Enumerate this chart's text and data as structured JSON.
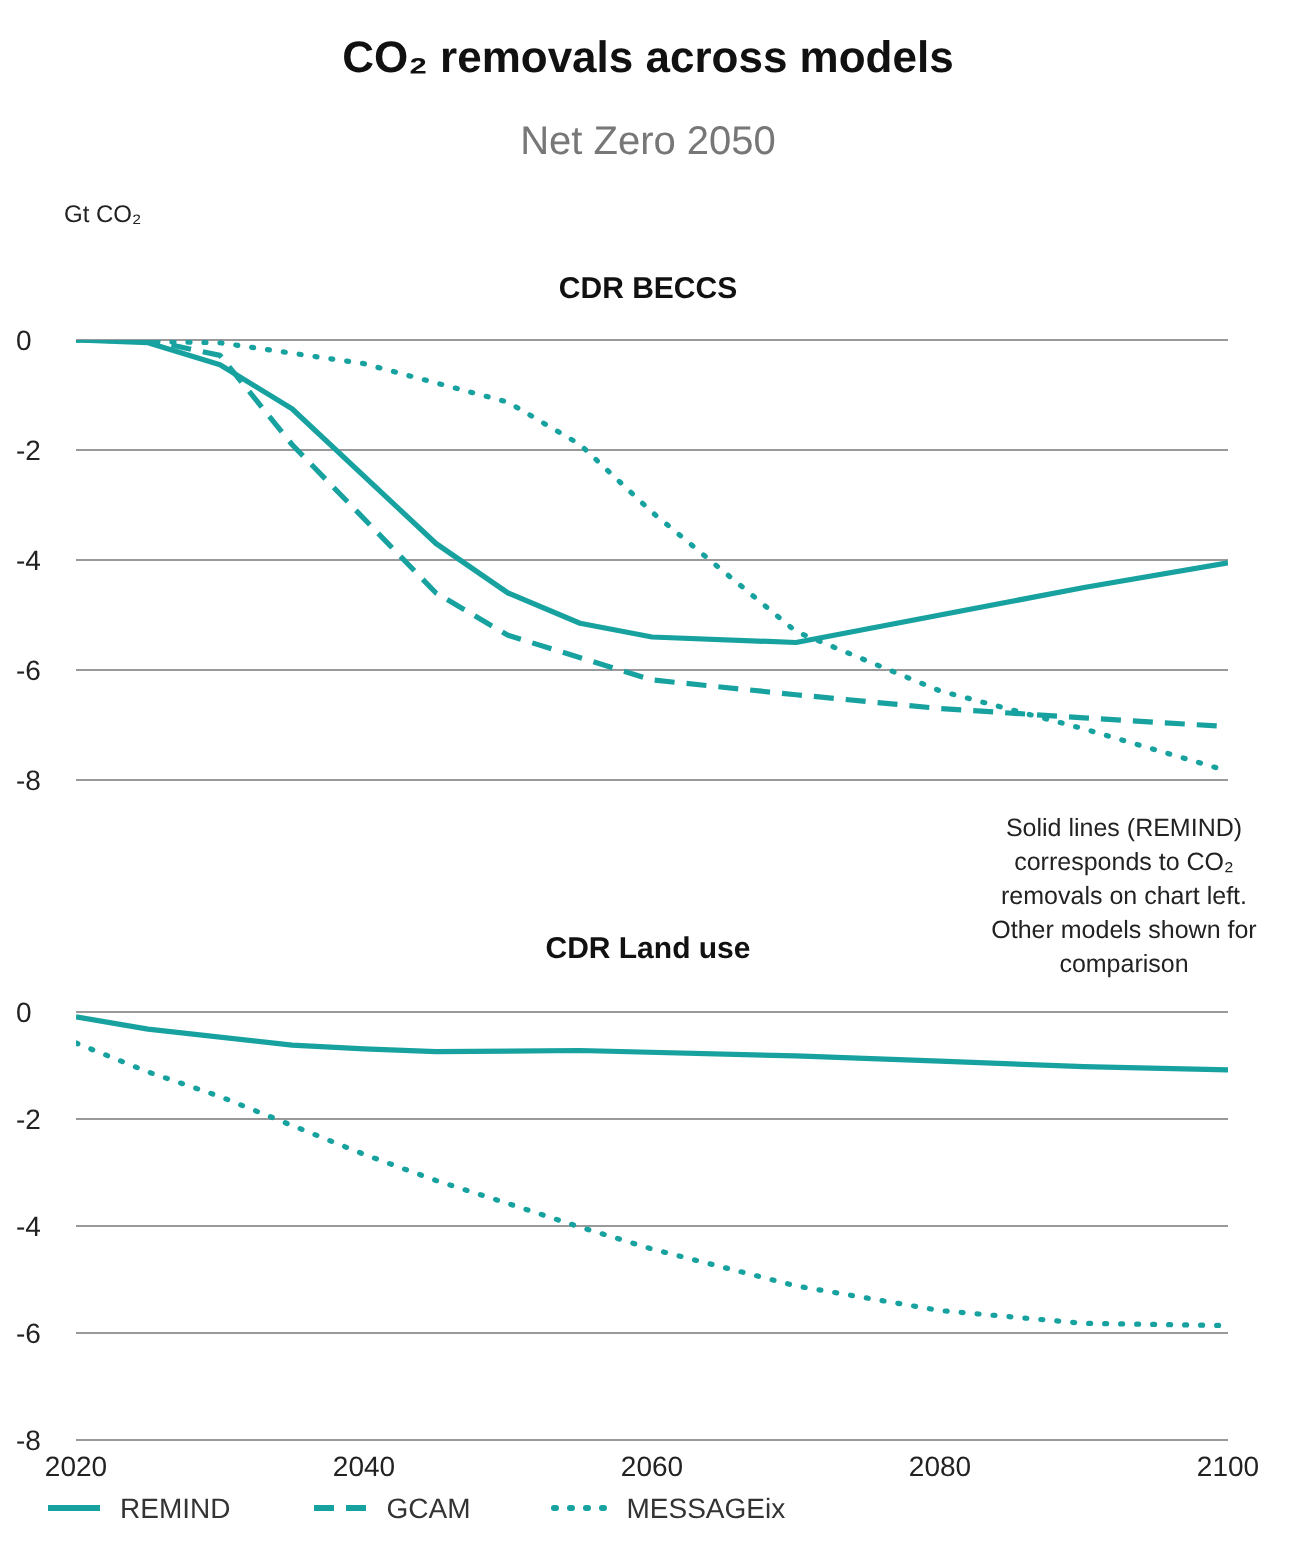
{
  "chart_data": [
    {
      "type": "line",
      "title": "CO₂ removals across models",
      "subtitle": "Net Zero 2050",
      "ylabel": "Gt CO₂",
      "annotations": [
        "CDR BECCS",
        "Solid lines (REMIND) corresponds to CO₂ removals on chart left. Other models shown for comparison"
      ],
      "x": [
        2020,
        2025,
        2030,
        2035,
        2040,
        2045,
        2050,
        2055,
        2060,
        2070,
        2080,
        2090,
        2100
      ],
      "series": [
        {
          "color": "#17a2a0",
          "line_style": "solid",
          "values": [
            0,
            -0.05,
            -0.45,
            -1.25,
            null,
            -3.7,
            -4.6,
            -5.15,
            -5.4,
            -5.5,
            null,
            -4.5,
            -4.05
          ]
        },
        {
          "color": "#17a2a0",
          "line_style": "dashed",
          "values": [
            0,
            0,
            -0.28,
            -1.9,
            null,
            -4.6,
            -5.37,
            null,
            -6.18,
            -6.45,
            -6.7,
            -6.87,
            -7.03
          ]
        },
        {
          "color": "#17a2a0",
          "line_style": "dotted",
          "values": [
            0,
            null,
            -0.05,
            null,
            -0.43,
            null,
            -1.13,
            -1.9,
            -3.13,
            -5.3,
            -6.38,
            -7.07,
            -7.84
          ]
        }
      ],
      "xlim": [
        2020,
        2100
      ],
      "xticks": [
        2020,
        2040,
        2060,
        2080,
        2100
      ],
      "ylim": [
        -8,
        0
      ],
      "yticks": [
        -8,
        -6,
        -4,
        -2,
        0
      ],
      "grid": "y",
      "tick_labels": "y",
      "legend": false
    },
    {
      "type": "line",
      "title": "CDR Land use",
      "x": [
        2020,
        2025,
        2030,
        2035,
        2040,
        2045,
        2050,
        2055,
        2060,
        2070,
        2080,
        2090,
        2100
      ],
      "series": [
        {
          "name": "REMIND",
          "color": "#17a2a0",
          "line_style": "solid",
          "values": [
            -0.09,
            -0.32,
            null,
            -0.62,
            -0.69,
            -0.74,
            null,
            -0.72,
            null,
            -0.82,
            -0.92,
            -1.02,
            -1.08
          ]
        },
        {
          "name": "GCAM",
          "color": "#17a2a0",
          "line_style": "dashed",
          "values": [
            null,
            null,
            null,
            null,
            null,
            null,
            null,
            null,
            null,
            null,
            null,
            null,
            null
          ]
        },
        {
          "name": "MESSAGEix",
          "color": "#17a2a0",
          "line_style": "dotted",
          "values": [
            -0.58,
            -1.12,
            -1.58,
            -2.12,
            -2.66,
            -3.15,
            -3.58,
            -4.02,
            -4.43,
            -5.12,
            -5.58,
            -5.82,
            -5.86
          ]
        }
      ],
      "xlim": [
        2020,
        2100
      ],
      "xticks": [
        2020,
        2040,
        2060,
        2080,
        2100
      ],
      "ylim": [
        -8,
        0
      ],
      "yticks": [
        -8,
        -6,
        -4,
        -2,
        0
      ],
      "grid": "y",
      "legend": "bottom"
    }
  ]
}
